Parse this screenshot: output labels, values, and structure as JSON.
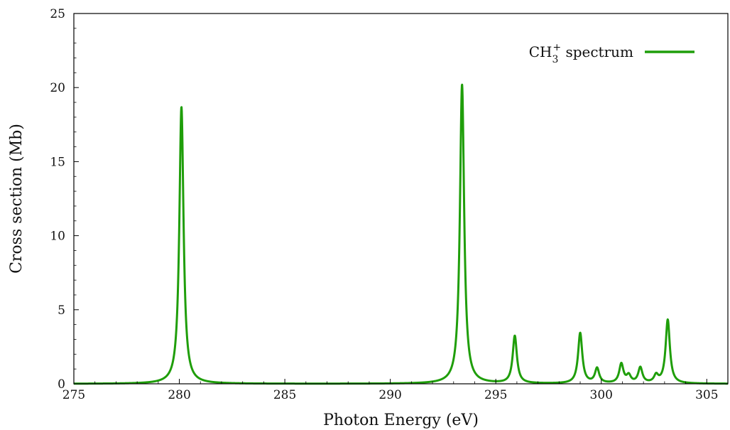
{
  "chart_data": {
    "type": "line",
    "xlabel": "Photon Energy (eV)",
    "ylabel": "Cross section (Mb)",
    "xlim": [
      275,
      306
    ],
    "ylim": [
      0,
      25
    ],
    "xticks": [
      275,
      280,
      285,
      290,
      295,
      300,
      305
    ],
    "yticks": [
      0,
      5,
      10,
      15,
      20,
      25
    ],
    "grid": false,
    "legend": {
      "position": "top-right"
    },
    "series": [
      {
        "name": "CH₃⁺ spectrum",
        "legend_parts": {
          "base": "CH",
          "sub": "3",
          "sup": "+",
          "rest": " spectrum"
        },
        "color": "#1f9e0a",
        "peaks": [
          {
            "center": 280.1,
            "height": 18.7
          },
          {
            "center": 293.4,
            "height": 20.2
          },
          {
            "center": 295.9,
            "height": 3.2
          },
          {
            "center": 299.0,
            "height": 3.4
          },
          {
            "center": 299.8,
            "height": 1.0
          },
          {
            "center": 300.95,
            "height": 1.3
          },
          {
            "center": 301.3,
            "height": 0.5
          },
          {
            "center": 301.85,
            "height": 1.05
          },
          {
            "center": 302.6,
            "height": 0.5
          },
          {
            "center": 303.15,
            "height": 4.3
          }
        ]
      }
    ]
  }
}
